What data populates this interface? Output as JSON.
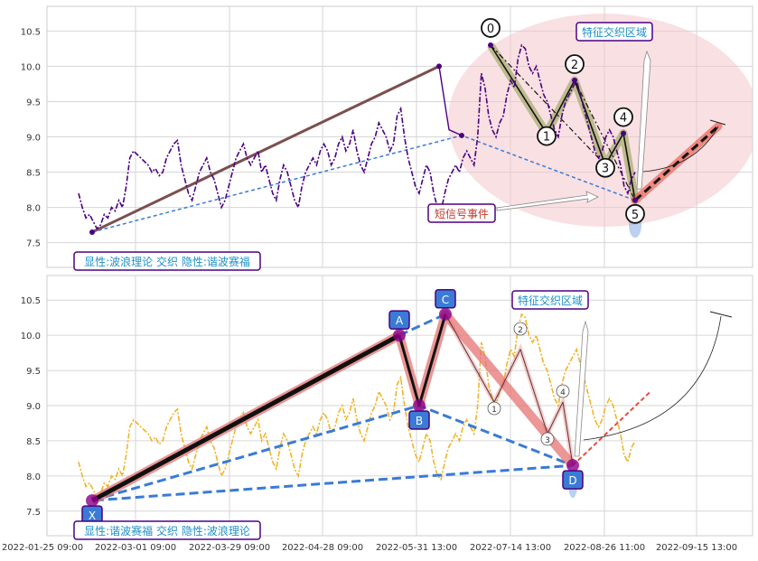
{
  "chart_data": [
    {
      "type": "line",
      "title": "",
      "ylim": [
        7.15,
        10.85
      ],
      "yticks": [
        "7.5",
        "8.0",
        "8.5",
        "9.0",
        "9.5",
        "10.0",
        "10.5"
      ],
      "grid": true,
      "price_series": {
        "name": "",
        "color": "#4b0082",
        "style": "dashdot",
        "values": [
          8.2,
          8.0,
          7.85,
          7.9,
          7.8,
          7.7,
          7.75,
          7.9,
          7.85,
          8.0,
          7.95,
          8.1,
          8.0,
          8.3,
          8.7,
          8.8,
          8.75,
          8.7,
          8.65,
          8.6,
          8.5,
          8.55,
          8.45,
          8.5,
          8.7,
          8.8,
          8.9,
          8.95,
          8.6,
          8.4,
          8.2,
          8.1,
          8.3,
          8.5,
          8.6,
          8.7,
          8.5,
          8.4,
          8.2,
          8.0,
          8.1,
          8.3,
          8.5,
          8.7,
          8.8,
          8.9,
          8.7,
          8.6,
          8.7,
          8.8,
          8.5,
          8.6,
          8.4,
          8.2,
          8.1,
          8.4,
          8.6,
          8.5,
          8.3,
          8.1,
          8.0,
          8.3,
          8.5,
          8.6,
          8.7,
          8.6,
          8.8,
          8.9,
          8.8,
          8.6,
          8.7,
          8.9,
          9.0,
          8.8,
          8.9,
          9.1,
          8.8,
          8.6,
          8.5,
          8.7,
          8.9,
          9.0,
          9.2,
          9.1,
          9.0,
          8.8,
          8.9,
          9.3,
          9.4,
          9.0,
          8.7,
          8.5,
          8.3,
          8.2,
          8.4,
          8.6,
          8.5,
          8.2,
          8.0,
          7.95,
          8.2,
          8.4,
          8.5,
          8.6,
          8.5,
          8.7,
          8.8,
          8.7,
          8.6,
          9.0,
          9.9,
          9.7,
          9.3,
          9.1,
          9.0,
          9.2,
          9.3,
          9.6,
          9.8,
          9.7,
          10.1,
          10.3,
          10.25,
          10.0,
          9.9,
          10.0,
          9.8,
          9.6,
          9.5,
          9.3,
          9.1,
          9.0,
          9.3,
          9.5,
          9.6,
          9.7,
          9.8,
          9.6,
          9.4,
          9.2,
          9.0,
          8.8,
          8.7,
          8.8,
          9.0,
          9.1,
          9.0,
          8.8,
          8.6,
          8.3,
          8.2,
          8.4,
          8.5
        ]
      },
      "wave_points": [
        {
          "label": "0",
          "x": "2022-06-08",
          "y": 10.3
        },
        {
          "label": "1",
          "x": "2022-07-06",
          "y": 9.05
        },
        {
          "label": "2",
          "x": "2022-07-17",
          "y": 9.8
        },
        {
          "label": "3",
          "x": "2022-08-02",
          "y": 8.6
        },
        {
          "label": "4",
          "x": "2022-08-09",
          "y": 9.05
        },
        {
          "label": "5",
          "x": "2022-08-20",
          "y": 8.1
        }
      ],
      "x_dates": {
        "start": "2022-02-01",
        "end": "2022-06-03"
      },
      "annotations": {
        "overlap_zone": "特征交织区域",
        "short_signal": "短信号事件",
        "caption": "显性:波浪理论 交织 隐性:谐波赛福"
      }
    },
    {
      "type": "line",
      "title": "",
      "ylim": [
        7.15,
        10.85
      ],
      "yticks": [
        "7.5",
        "8.0",
        "8.5",
        "9.0",
        "9.5",
        "10.0",
        "10.5"
      ],
      "grid": true,
      "price_series": {
        "name": "",
        "color": "#f0b429",
        "style": "dashdot"
      },
      "harmonic_points": [
        {
          "label": "X",
          "x": "2022-02-01",
          "y": 7.65
        },
        {
          "label": "A",
          "x": "2022-05-27",
          "y": 10.0
        },
        {
          "label": "B",
          "x": "2022-06-03",
          "y": 9.0
        },
        {
          "label": "C",
          "x": "2022-06-12",
          "y": 10.3
        },
        {
          "label": "D",
          "x": "2022-08-20",
          "y": 8.15
        }
      ],
      "wave_markers": [
        "1",
        "2",
        "3",
        "4"
      ],
      "annotations": {
        "overlap_zone": "特征交织区域",
        "caption": "显性:谐波赛福 交织 隐性:波浪理论"
      },
      "xticks": [
        "2022-01-25 09:00",
        "2022-03-01 09:00",
        "2022-03-29 09:00",
        "2022-04-28 09:00",
        "2022-05-31 13:00",
        "2022-07-14 13:00",
        "2022-08-26 11:00",
        "2022-09-15 13:00"
      ]
    }
  ],
  "colors": {
    "wave_price": "#4b0082",
    "harmonic_price": "#f0b429",
    "trend_brown": "#7b4f4f",
    "trend_blue": "#3a7bd5",
    "zone_fill": "#f4c6cc",
    "label_text": "#1e90c8",
    "label_border": "#4b0082",
    "point_fill": "#4b0082",
    "harmonic_label_bg": "#3a7bd5",
    "signal_text": "#c0392b"
  }
}
